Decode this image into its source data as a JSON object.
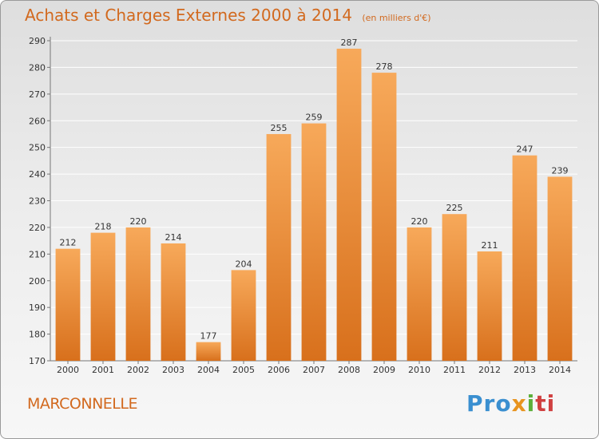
{
  "header": {
    "title": "Achats et Charges Externes 2000 à 2014",
    "subtitle": "(en milliers d'€)"
  },
  "footer": {
    "commune": "MARCONNELLE",
    "logo_parts": [
      "Pro",
      "x",
      "i",
      "ti"
    ]
  },
  "colors": {
    "bar_top": "#f7a95a",
    "bar_bottom": "#d8701c",
    "title": "#d2691e",
    "grid": "#ffffff"
  },
  "chart_data": {
    "type": "bar",
    "title": "Achats et Charges Externes 2000 à 2014",
    "subtitle": "(en milliers d'€)",
    "categories": [
      "2000",
      "2001",
      "2002",
      "2003",
      "2004",
      "2005",
      "2006",
      "2007",
      "2008",
      "2009",
      "2010",
      "2011",
      "2012",
      "2013",
      "2014"
    ],
    "values": [
      212,
      218,
      220,
      214,
      177,
      204,
      255,
      259,
      287,
      278,
      220,
      225,
      211,
      247,
      239
    ],
    "ylim": [
      170,
      290
    ],
    "yticks": [
      170,
      180,
      190,
      200,
      210,
      220,
      230,
      240,
      250,
      260,
      270,
      280,
      290
    ],
    "grid": true,
    "data_labels": true,
    "legend": "none"
  }
}
